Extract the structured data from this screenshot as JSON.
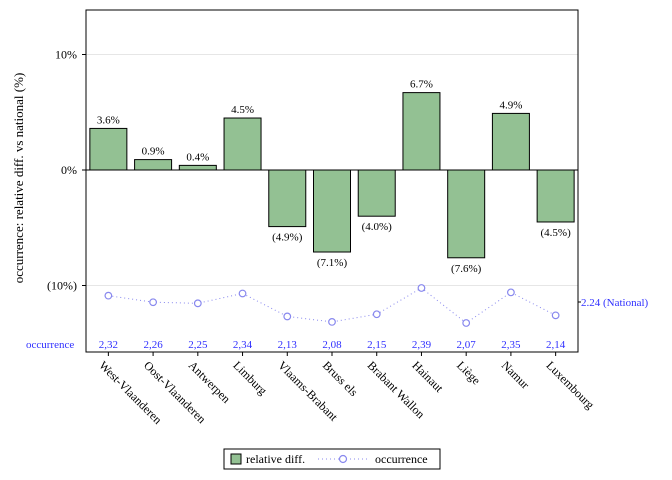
{
  "chart_data": {
    "type": "bar",
    "categories": [
      "West-Vlaanderen",
      "Oost-Vlaanderen",
      "Antwerpen",
      "Limburg",
      "Vlaams-Brabant",
      "Bruss els",
      "Brabant Wallon",
      "Hainaut",
      "Liège",
      "Namur",
      "Luxembourg"
    ],
    "series": [
      {
        "name": "relative diff.",
        "values": [
          3.6,
          0.9,
          0.4,
          4.5,
          -4.9,
          -7.1,
          -4.0,
          6.7,
          -7.6,
          4.9,
          -4.5
        ],
        "labels": [
          "3.6%",
          "0.9%",
          "0.4%",
          "4.5%",
          "(4.9%)",
          "(7.1%)",
          "(4.0%)",
          "6.7%",
          "(7.6%)",
          "4.9%",
          "(4.5%)"
        ],
        "color": "#93c193"
      },
      {
        "name": "occurrence",
        "values": [
          2.32,
          2.26,
          2.25,
          2.34,
          2.13,
          2.08,
          2.15,
          2.39,
          2.07,
          2.35,
          2.14
        ],
        "labels": [
          "2,32",
          "2,26",
          "2,25",
          "2,34",
          "2,13",
          "2,08",
          "2,15",
          "2,39",
          "2,07",
          "2,35",
          "2,14"
        ],
        "color": "#3030ff"
      }
    ],
    "ylabel": "occurrence: relative diff. vs national (%)",
    "yticks": [
      {
        "value": 10,
        "label": "10%"
      },
      {
        "value": 0,
        "label": "0%"
      },
      {
        "value": -10,
        "label": "(10%)"
      }
    ],
    "ylim": [
      -15,
      14
    ],
    "occurrence_range": [
      1.7,
      2.5
    ],
    "national": {
      "value": 2.24,
      "label": "2.24 (National)"
    },
    "row_label": "occurrence",
    "grid": "horizontal",
    "legend": {
      "position": "bottom"
    }
  }
}
